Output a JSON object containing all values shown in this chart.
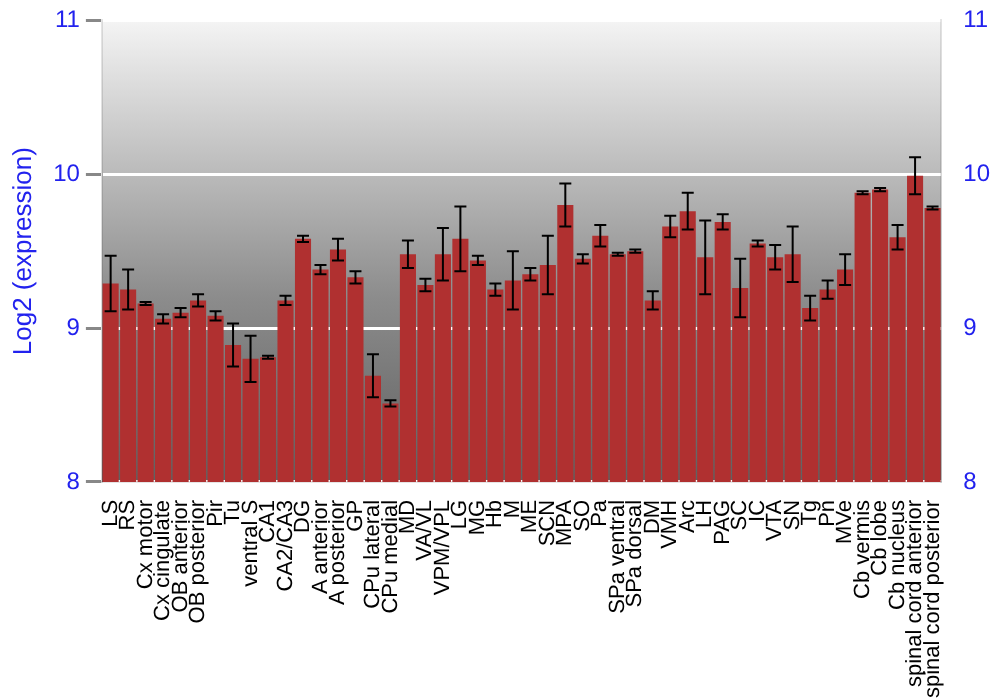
{
  "chart_data": {
    "type": "bar",
    "ylabel": "Log2 (expression)",
    "categories": [
      "LS",
      "RS",
      "Cx motor",
      "Cx cingulate",
      "OB anterior",
      "OB posterior",
      "Pir",
      "Tu",
      "ventral S",
      "CA1",
      "CA2/CA3",
      "DG",
      "A anterior",
      "A posterior",
      "GP",
      "CPu lateral",
      "CPu medial",
      "MD",
      "VA/VL",
      "VPM/VPL",
      "LG",
      "MG",
      "Hb",
      "M",
      "ME",
      "SCN",
      "MPA",
      "SO",
      "Pa",
      "SPa ventral",
      "SPa dorsal",
      "DM",
      "VMH",
      "Arc",
      "LH",
      "PAG",
      "SC",
      "IC",
      "VTA",
      "SN",
      "Tg",
      "Pn",
      "MVe",
      "Cb vermis",
      "Cb lobe",
      "Cb nucleus",
      "spinal cord anterior",
      "spinal cord posterior"
    ],
    "values": [
      9.29,
      9.25,
      9.16,
      9.06,
      9.1,
      9.18,
      9.08,
      8.89,
      8.8,
      8.81,
      9.18,
      9.58,
      9.38,
      9.51,
      9.33,
      8.69,
      8.51,
      9.48,
      9.28,
      9.48,
      9.58,
      9.44,
      9.25,
      9.31,
      9.35,
      9.41,
      9.8,
      9.45,
      9.6,
      9.48,
      9.5,
      9.18,
      9.66,
      9.76,
      9.46,
      9.69,
      9.26,
      9.55,
      9.46,
      9.48,
      9.13,
      9.25,
      9.38,
      9.88,
      9.9,
      9.59,
      9.99,
      9.78
    ],
    "errors": [
      0.18,
      0.13,
      0.01,
      0.03,
      0.03,
      0.04,
      0.03,
      0.14,
      0.15,
      0.01,
      0.03,
      0.02,
      0.03,
      0.07,
      0.04,
      0.14,
      0.02,
      0.09,
      0.04,
      0.17,
      0.21,
      0.03,
      0.04,
      0.19,
      0.04,
      0.19,
      0.14,
      0.03,
      0.07,
      0.01,
      0.01,
      0.06,
      0.07,
      0.12,
      0.24,
      0.05,
      0.19,
      0.02,
      0.08,
      0.18,
      0.08,
      0.06,
      0.1,
      0.01,
      0.01,
      0.08,
      0.12,
      0.01
    ],
    "color": "#b03030",
    "ylim": [
      8,
      11
    ],
    "yticks": [
      8,
      9,
      10,
      11
    ],
    "y2lim": [
      8,
      11
    ],
    "y2ticks": [
      8,
      9,
      10,
      11
    ],
    "grid": "y",
    "legend": false
  }
}
